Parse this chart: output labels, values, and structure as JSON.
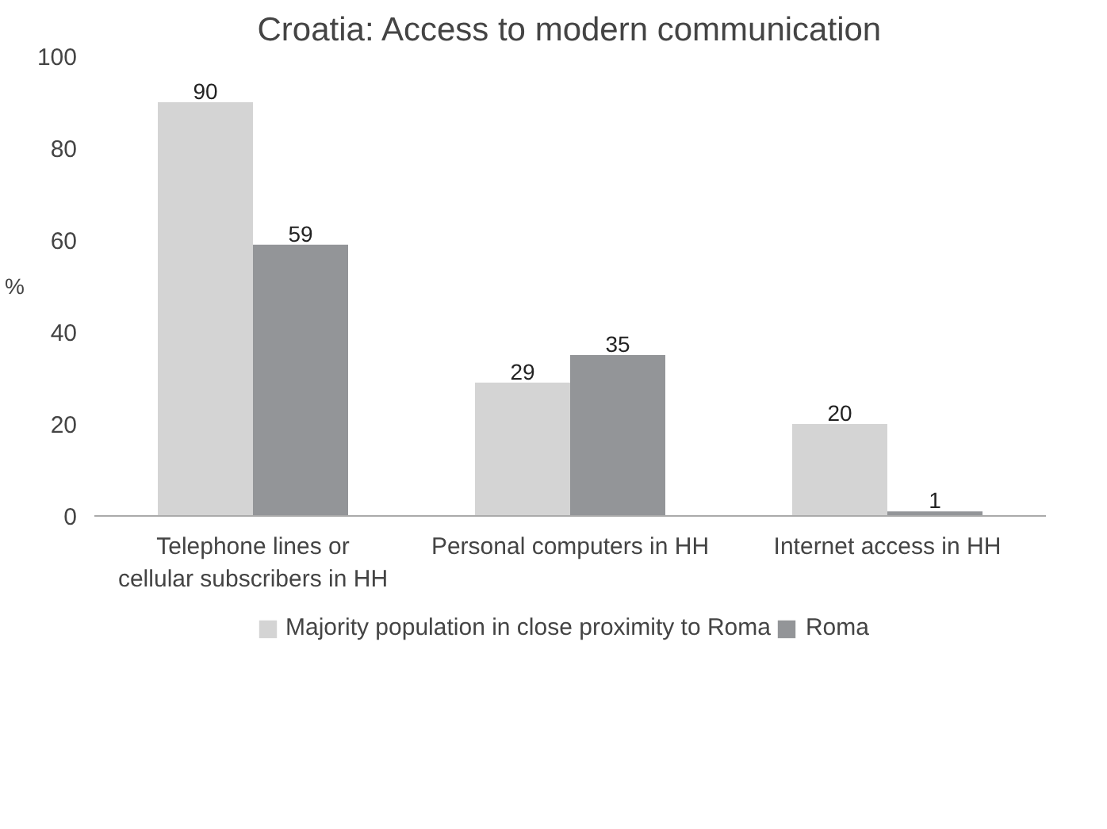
{
  "chart_data": {
    "type": "bar",
    "title": "Croatia: Access to modern communication",
    "ylabel": "%",
    "categories": [
      "Telephone lines or\ncellular subscribers in HH",
      "Personal computers in HH",
      "Internet access in HH"
    ],
    "series": [
      {
        "name": "Majority population in close proximity to Roma",
        "color": "#d4d4d4",
        "values": [
          90,
          29,
          20
        ]
      },
      {
        "name": "Roma",
        "color": "#939598",
        "values": [
          59,
          35,
          1
        ]
      }
    ],
    "ylim": [
      0,
      100
    ],
    "yticks": [
      0,
      20,
      40,
      60,
      80,
      100
    ],
    "data_labels": true,
    "grid": false,
    "legend": "bottom"
  }
}
